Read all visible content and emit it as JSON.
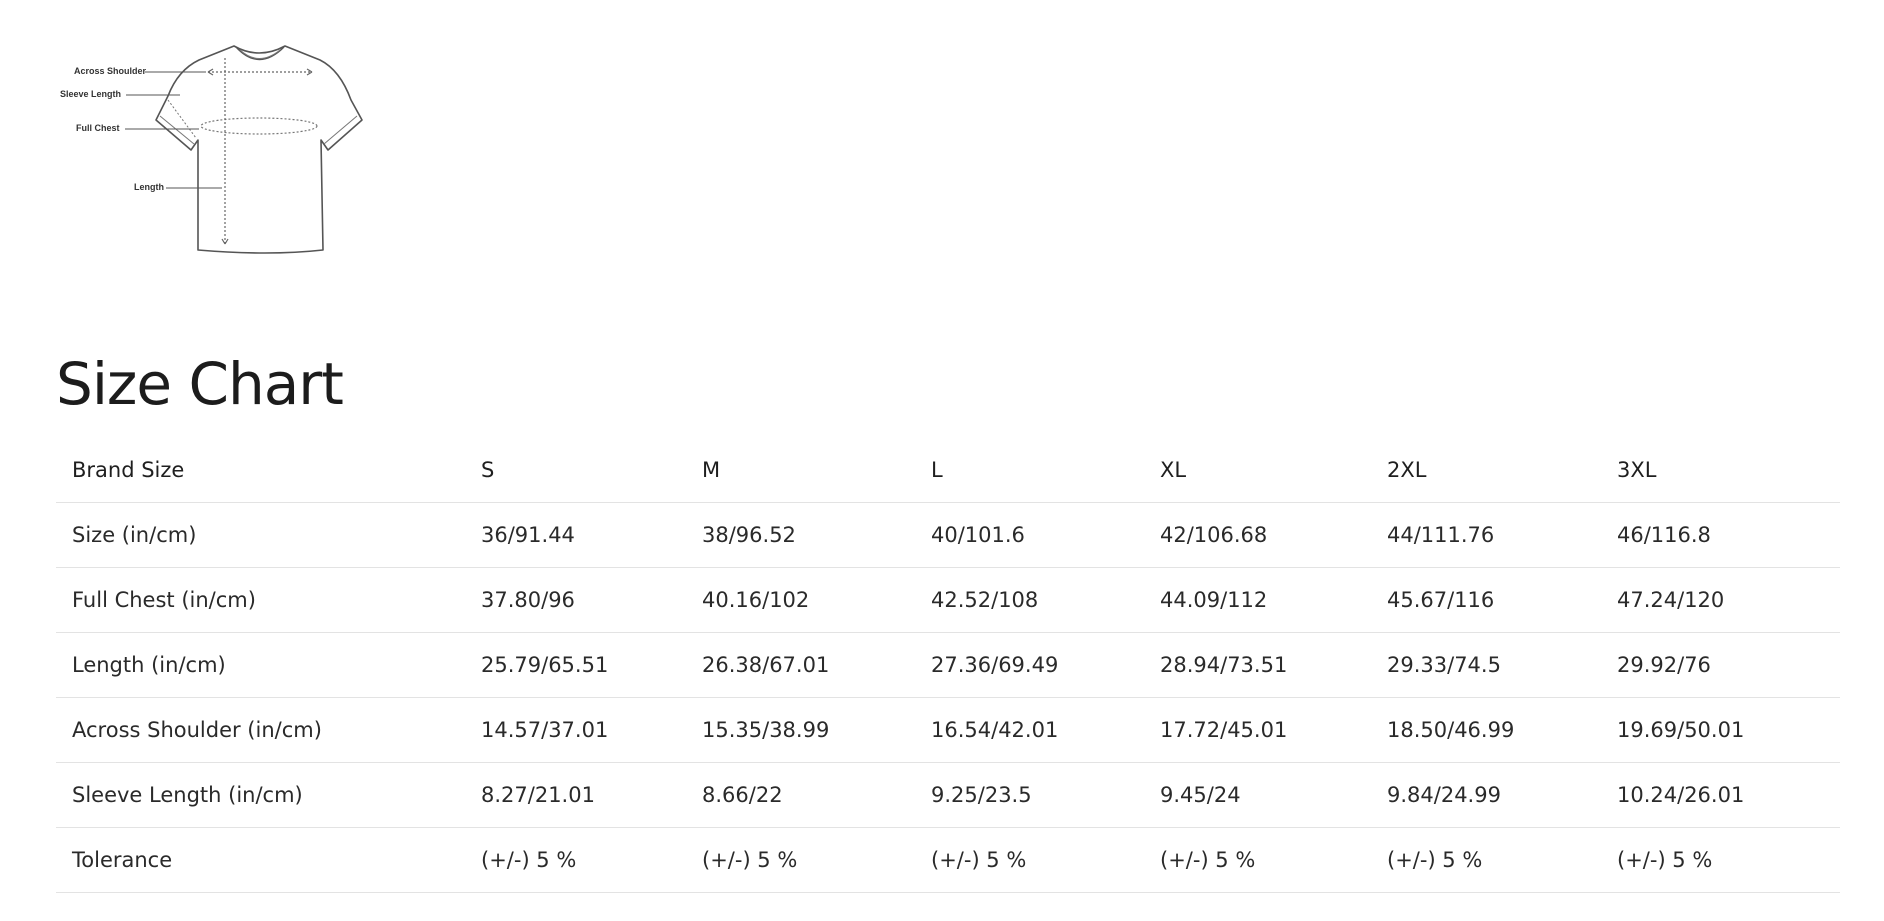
{
  "diagram": {
    "labels": {
      "across_shoulder": "Across Shoulder",
      "sleeve_length": "Sleeve Length",
      "full_chest": "Full Chest",
      "length": "Length"
    }
  },
  "title": "Size Chart",
  "table": {
    "headers": [
      "Brand Size",
      "S",
      "M",
      "L",
      "XL",
      "2XL",
      "3XL"
    ],
    "rows": [
      [
        "Size (in/cm)",
        "36/91.44",
        "38/96.52",
        "40/101.6",
        "42/106.68",
        "44/111.76",
        "46/116.8"
      ],
      [
        "Full Chest (in/cm)",
        "37.80/96",
        "40.16/102",
        "42.52/108",
        "44.09/112",
        "45.67/116",
        "47.24/120"
      ],
      [
        "Length (in/cm)",
        "25.79/65.51",
        "26.38/67.01",
        "27.36/69.49",
        "28.94/73.51",
        "29.33/74.5",
        "29.92/76"
      ],
      [
        "Across Shoulder (in/cm)",
        "14.57/37.01",
        "15.35/38.99",
        "16.54/42.01",
        "17.72/45.01",
        "18.50/46.99",
        "19.69/50.01"
      ],
      [
        "Sleeve Length (in/cm)",
        "8.27/21.01",
        "8.66/22",
        "9.25/23.5",
        "9.45/24",
        "9.84/24.99",
        "10.24/26.01"
      ],
      [
        "Tolerance",
        "(+/-) 5 %",
        "(+/-) 5 %",
        "(+/-) 5 %",
        "(+/-) 5 %",
        "(+/-) 5 %",
        "(+/-) 5 %"
      ]
    ]
  }
}
